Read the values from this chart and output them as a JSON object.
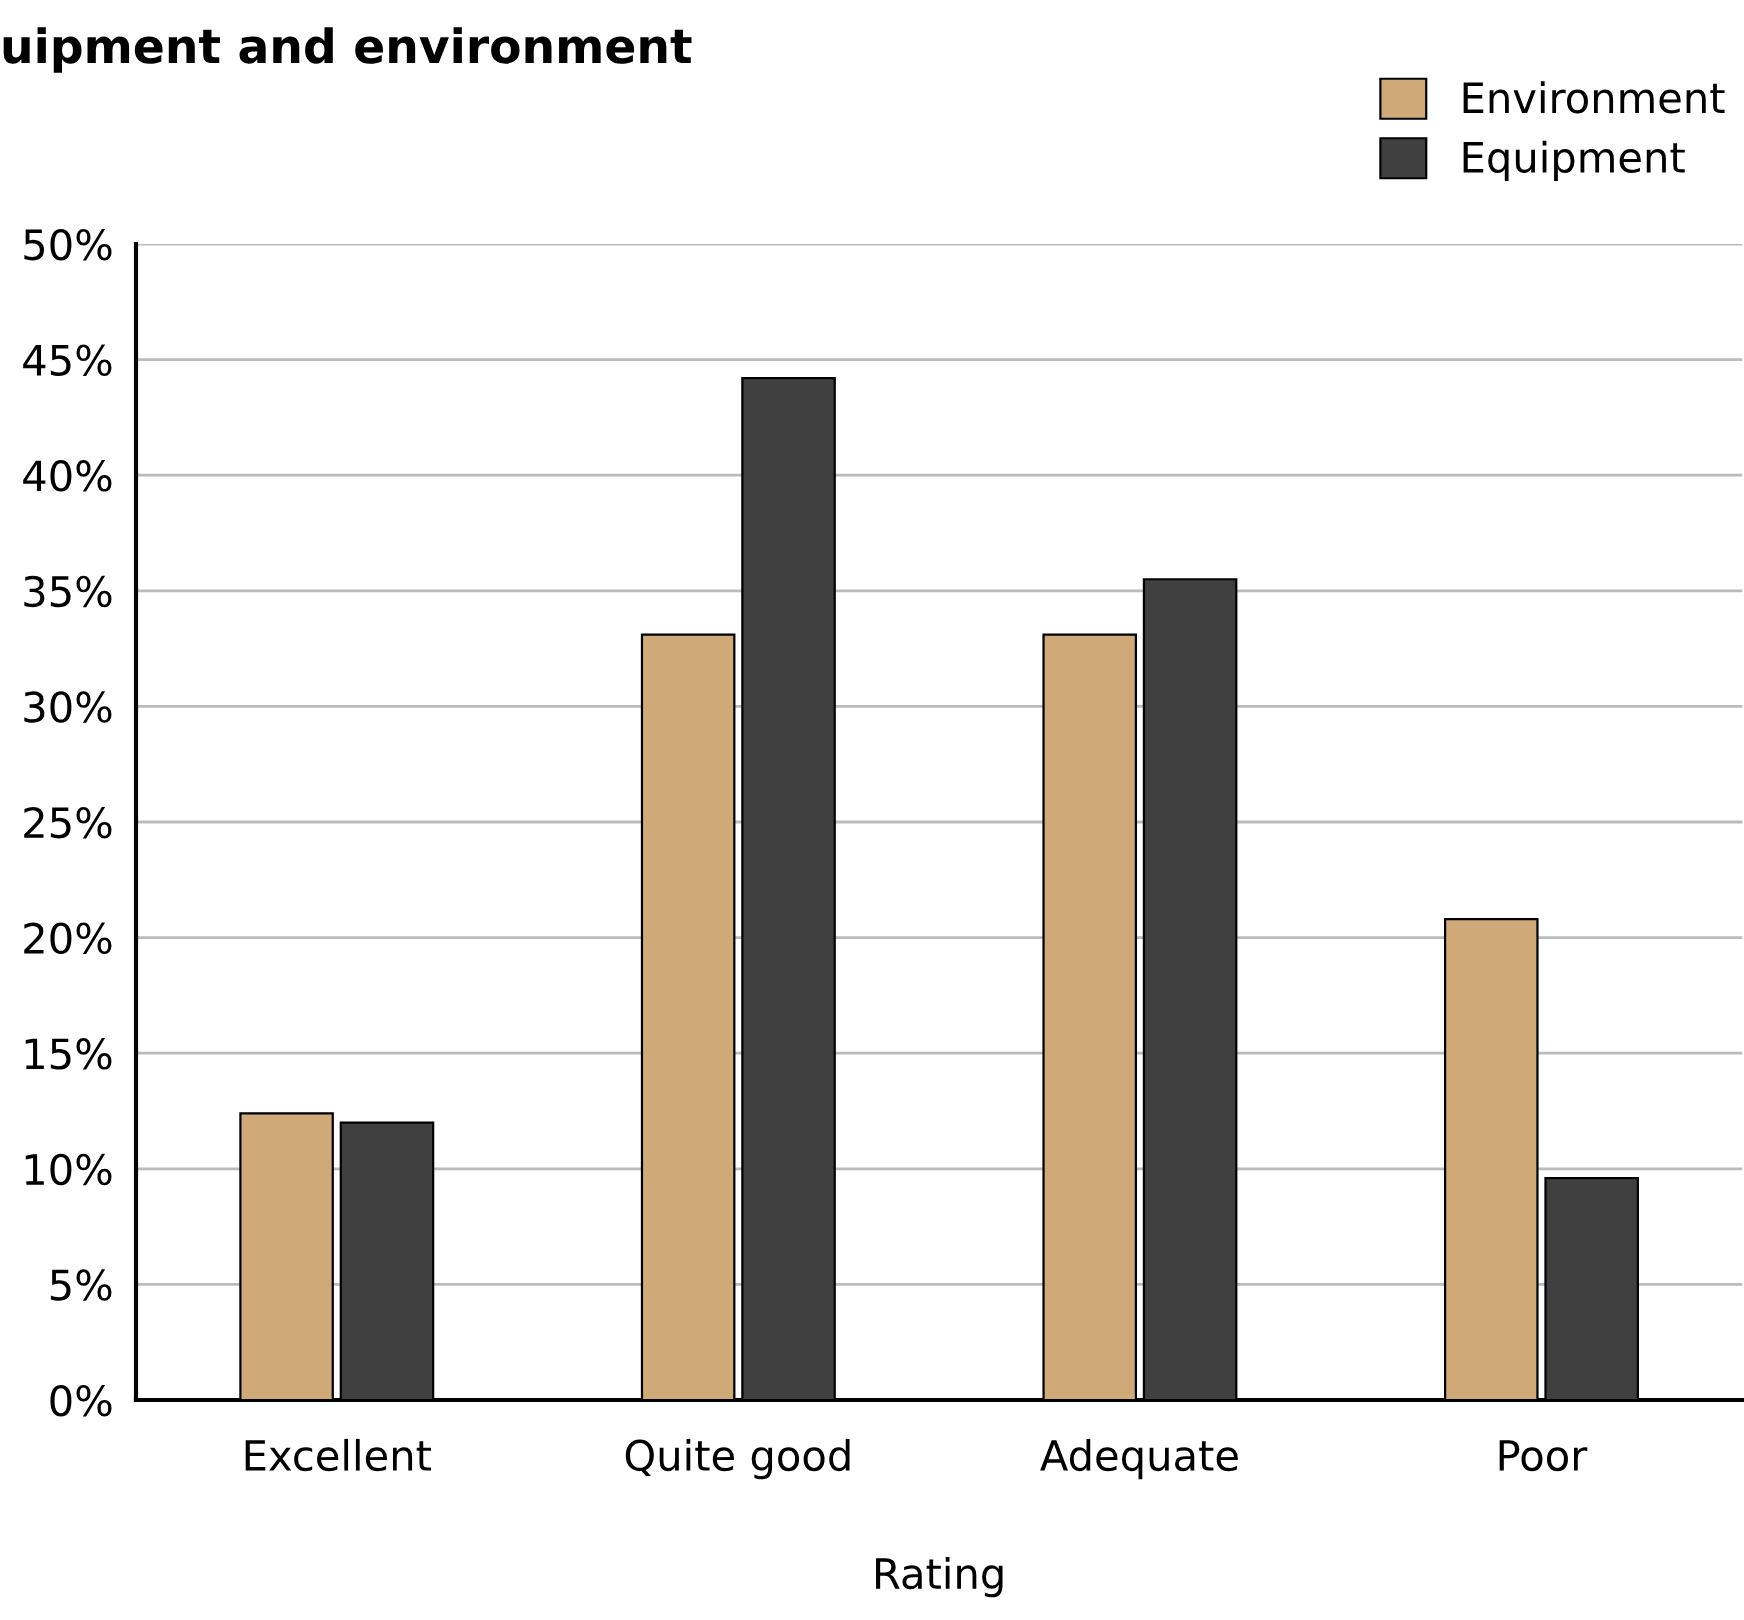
{
  "chart_data": {
    "type": "bar",
    "title": "uipment and environment",
    "xlabel": "Rating",
    "categories": [
      "Excellent",
      "Quite good",
      "Adequate",
      "Poor"
    ],
    "series": [
      {
        "name": "Environment",
        "color": "#cfaa78",
        "values": [
          12.4,
          33.1,
          33.1,
          20.8
        ]
      },
      {
        "name": "Equipment",
        "color": "#404040",
        "values": [
          12.0,
          44.2,
          35.5,
          9.6
        ]
      }
    ],
    "ylim": [
      0,
      50
    ],
    "yticks": [
      {
        "value": 0,
        "label": "0%"
      },
      {
        "value": 5,
        "label": "5%"
      },
      {
        "value": 10,
        "label": "10%"
      },
      {
        "value": 15,
        "label": "15%"
      },
      {
        "value": 20,
        "label": "20%"
      },
      {
        "value": 25,
        "label": "25%"
      },
      {
        "value": 30,
        "label": "30%"
      },
      {
        "value": 35,
        "label": "35%"
      },
      {
        "value": 40,
        "label": "40%"
      },
      {
        "value": 45,
        "label": "45%"
      },
      {
        "value": 50,
        "label": "50%"
      }
    ],
    "grid": "y",
    "legend": "top right"
  }
}
